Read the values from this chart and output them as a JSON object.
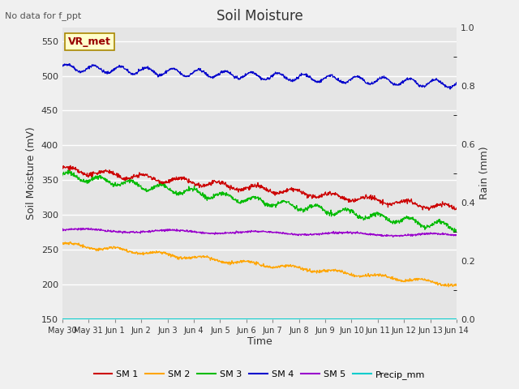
{
  "title": "Soil Moisture",
  "subtitle": "No data for f_ppt",
  "xlabel": "Time",
  "ylabel_left": "Soil Moisture (mV)",
  "ylabel_right": "Rain (mm)",
  "annotation": "VR_met",
  "ylim_left": [
    150,
    570
  ],
  "ylim_right": [
    0.0,
    1.0
  ],
  "yticks_left": [
    150,
    200,
    250,
    300,
    350,
    400,
    450,
    500,
    550
  ],
  "yticks_right": [
    0.0,
    0.2,
    0.4,
    0.6,
    0.8,
    1.0
  ],
  "yticks_right_minor": [
    0.1,
    0.3,
    0.5,
    0.7,
    0.9
  ],
  "x_tick_labels": [
    "May 30",
    "May 31",
    "Jun 1",
    "Jun 2",
    "Jun 3",
    "Jun 4",
    "Jun 5",
    "Jun 6",
    "Jun 7",
    "Jun 8",
    "Jun 9",
    "Jun 10",
    "Jun 11",
    "Jun 12",
    "Jun 13",
    "Jun 14"
  ],
  "background_color": "#e5e5e5",
  "fig_background": "#f0f0f0",
  "line_colors": {
    "SM1": "#cc0000",
    "SM2": "#ffa500",
    "SM3": "#00bb00",
    "SM4": "#0000cc",
    "SM5": "#9900cc",
    "Precip": "#00cccc"
  }
}
